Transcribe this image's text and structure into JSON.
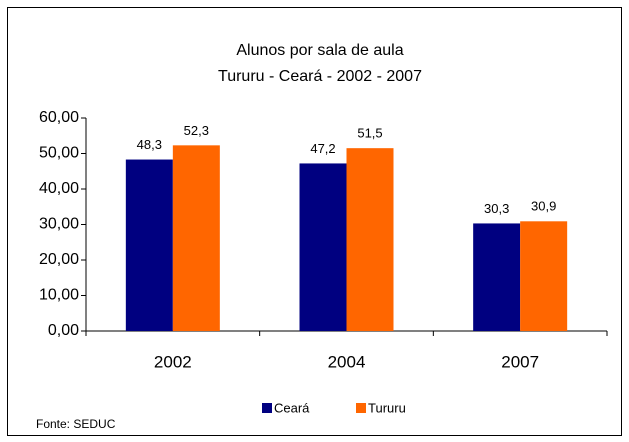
{
  "chart_data": {
    "type": "bar",
    "title": "Alunos por sala de aula",
    "subtitle": "Tururu - Ceará - 2002 - 2007",
    "categories": [
      "2002",
      "2004",
      "2007"
    ],
    "series": [
      {
        "name": "Ceará",
        "color": "#000080",
        "values": [
          48.3,
          47.2,
          30.3
        ],
        "value_labels": [
          "48,3",
          "47,2",
          "30,3"
        ]
      },
      {
        "name": "Tururu",
        "color": "#ff6600",
        "values": [
          52.3,
          51.5,
          30.9
        ],
        "value_labels": [
          "52,3",
          "51,5",
          "30,9"
        ]
      }
    ],
    "ylim": [
      0,
      60
    ],
    "yticks": [
      {
        "value": 0,
        "label": "0,00"
      },
      {
        "value": 10,
        "label": "10,00"
      },
      {
        "value": 20,
        "label": "20,00"
      },
      {
        "value": 30,
        "label": "30,00"
      },
      {
        "value": 40,
        "label": "40,00"
      },
      {
        "value": 50,
        "label": "50,00"
      },
      {
        "value": 60,
        "label": "60,00"
      }
    ],
    "grid": false,
    "legend": "bottom",
    "source": "Fonte: SEDUC"
  }
}
